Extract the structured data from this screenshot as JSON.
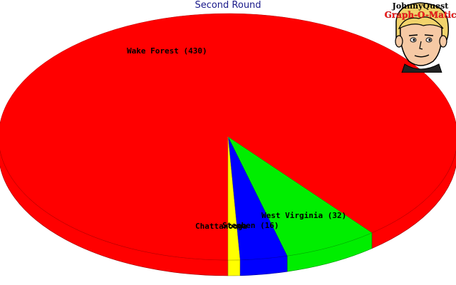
{
  "chart_data": {
    "type": "pie",
    "title": "Second Round",
    "slices": [
      {
        "label": "Wake Forest (430)",
        "category": "Wake Forest",
        "value": 430,
        "color": "#ff0000"
      },
      {
        "label": "West Virginia (32)",
        "category": "West Virginia",
        "value": 32,
        "color": "#00ee00"
      },
      {
        "label": "Stephen (16)",
        "category": "Stephen",
        "value": 16,
        "color": "#0000ff"
      },
      {
        "label": "Chattanooga",
        "category": "Chattanooga",
        "value": 4,
        "color": "#ffff00"
      }
    ]
  },
  "logo": {
    "line1": "JohnnyQuest",
    "line2": "Graph-O-Matic"
  }
}
